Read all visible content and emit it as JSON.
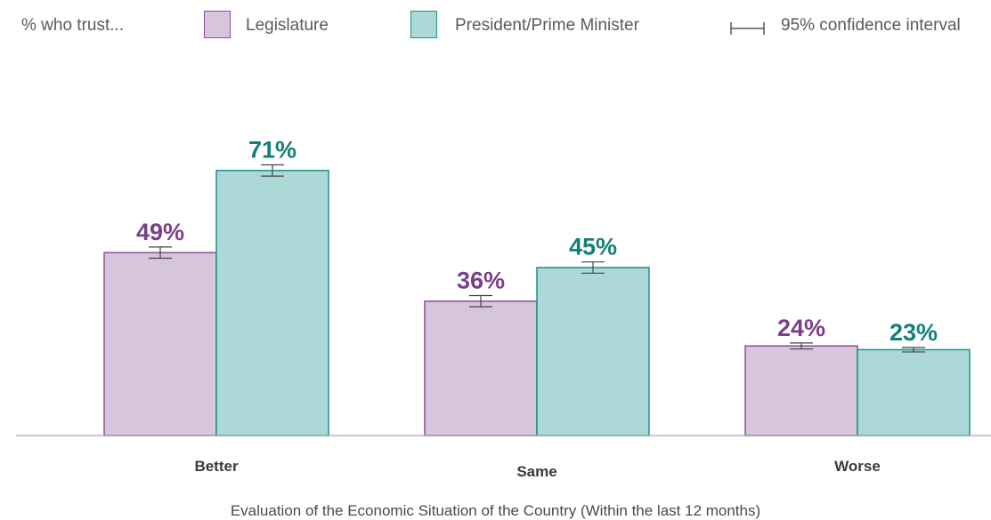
{
  "legend": {
    "prefix": "% who trust...",
    "items": [
      {
        "label": "Legislature",
        "fill": "#d6c5dc",
        "stroke": "#8a4f94"
      },
      {
        "label": "President/Prime Minister",
        "fill": "#acd9d7",
        "stroke": "#1b9189"
      }
    ],
    "ci_label": "95% confidence interval"
  },
  "colors": {
    "legislature_text": "#7a3f8a",
    "president_text": "#138078",
    "axis": "#aaaaaa",
    "errorbar": "#444444"
  },
  "chart_data": {
    "type": "bar",
    "categories": [
      "Better",
      "Same",
      "Worse"
    ],
    "series": [
      {
        "name": "Legislature",
        "values": [
          49,
          36,
          24
        ],
        "labels": [
          "49%",
          "36%",
          "24%"
        ]
      },
      {
        "name": "President/Prime Minister",
        "values": [
          71,
          45,
          23
        ],
        "labels": [
          "71%",
          "45%",
          "23%"
        ]
      }
    ],
    "error_margins": [
      [
        1.5,
        1.5,
        0.8
      ],
      [
        1.5,
        1.5,
        0.6
      ]
    ],
    "xlabel": "Evaluation of the Economic Situation of the Country (Within the last 12 months)",
    "ylabel": "",
    "ylim": [
      0,
      100
    ],
    "grid": false,
    "legend_position": "top"
  }
}
